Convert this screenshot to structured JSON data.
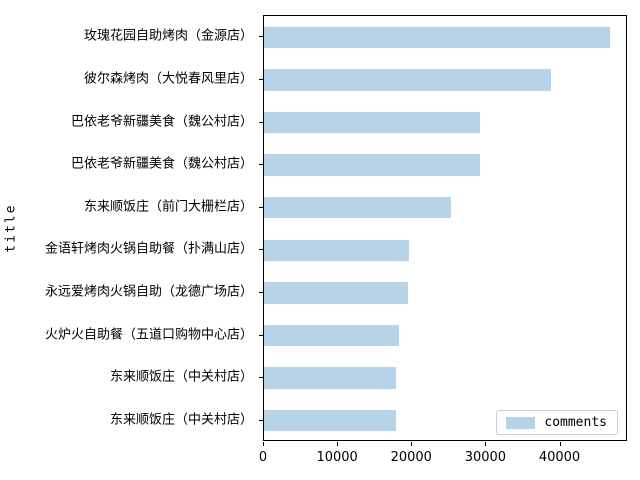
{
  "chart_data": {
    "type": "bar",
    "orientation": "horizontal",
    "title": "",
    "xlabel": "",
    "ylabel": "title",
    "grid": false,
    "legend_label": "comments",
    "legend_position": "lower right",
    "bar_color": "#b7d3e7",
    "categories": [
      "玫瑰花园自助烤肉（金源店）",
      "彼尔森烤肉（大悦春风里店）",
      "巴依老爷新疆美食（魏公村店）",
      "巴依老爷新疆美食（魏公村店）",
      "东来顺饭庄（前门大栅栏店）",
      "金语轩烤肉火锅自助餐（扑满山店）",
      "永远爱烤肉火锅自助（龙德广场店）",
      "火炉火自助餐（五道口购物中心店）",
      "东来顺饭庄（中关村店）",
      "东来顺饭庄（中关村店）"
    ],
    "values": [
      46700,
      38700,
      29100,
      29100,
      25200,
      19600,
      19400,
      18200,
      17800,
      17800
    ],
    "xticks": [
      0,
      10000,
      20000,
      30000,
      40000
    ],
    "xtick_labels": [
      "0",
      "10000",
      "20000",
      "30000",
      "40000"
    ],
    "xlim": [
      0,
      49100
    ],
    "bar_width_fraction": 0.5
  }
}
